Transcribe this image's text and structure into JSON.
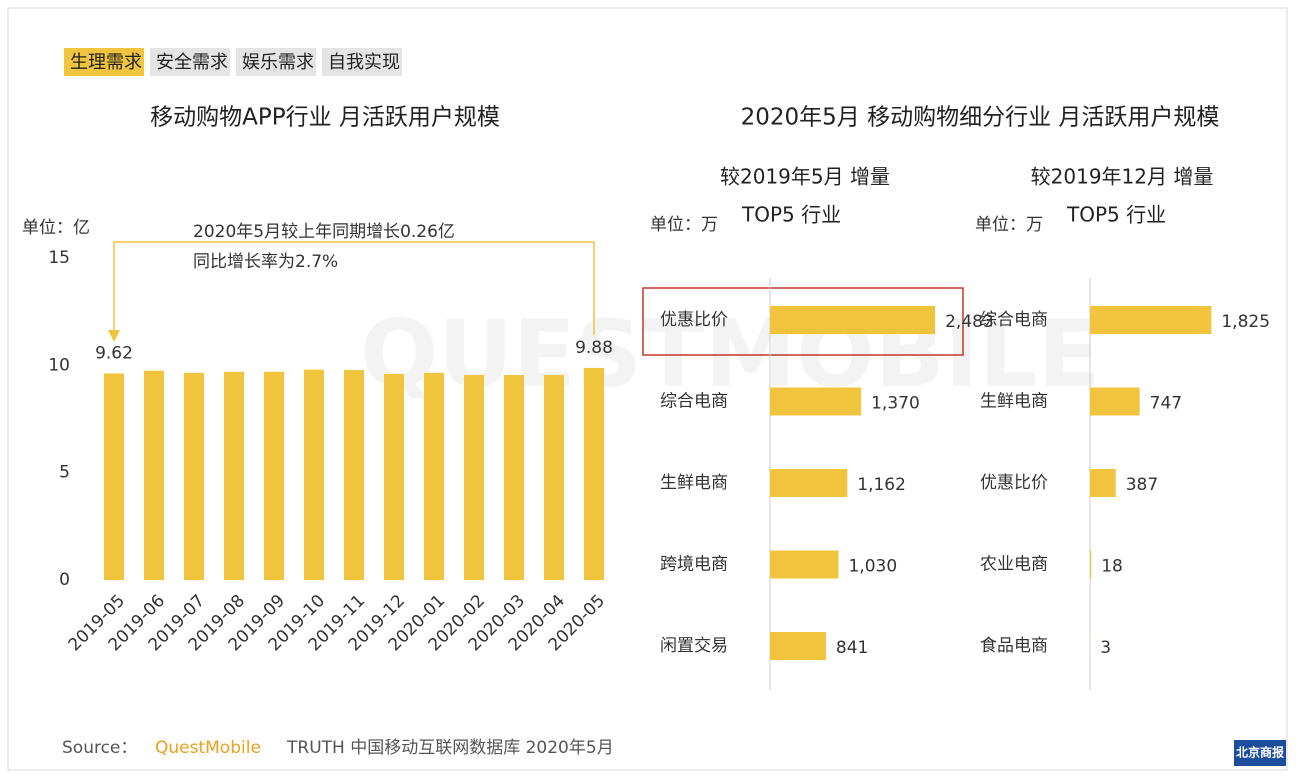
{
  "tabs": [
    "生理需求",
    "安全需求",
    "娱乐需求",
    "自我实现"
  ],
  "active_tab": 0,
  "heading": "2020年5月 移动购物细分行业 月活跃用户规模",
  "watermark": "QUESTMOBILE",
  "chart_data": [
    {
      "type": "bar",
      "title": "移动购物APP行业 月活跃用户规模",
      "unit": "单位：亿",
      "annotations": [
        "2020年5月较上年同期增长0.26亿",
        "同比增长率为2.7%"
      ],
      "categories": [
        "2019-05",
        "2019-06",
        "2019-07",
        "2019-08",
        "2019-09",
        "2019-10",
        "2019-11",
        "2019-12",
        "2020-01",
        "2020-02",
        "2020-03",
        "2020-04",
        "2020-05"
      ],
      "values": [
        9.62,
        9.75,
        9.65,
        9.7,
        9.7,
        9.8,
        9.78,
        9.6,
        9.65,
        9.55,
        9.55,
        9.55,
        9.88
      ],
      "value_labels": [
        "9.62",
        null,
        null,
        null,
        null,
        null,
        null,
        null,
        null,
        null,
        null,
        null,
        "9.88"
      ],
      "color": "#f0c43c",
      "ylim": [
        0,
        15
      ],
      "yticks": [
        0,
        5,
        10,
        15
      ]
    },
    {
      "type": "hbar",
      "subtitle": "较2019年5月 增量",
      "unit": "单位：万",
      "label": "TOP5 行业",
      "categories": [
        "优惠比价",
        "综合电商",
        "生鲜电商",
        "跨境电商",
        "闲置交易"
      ],
      "values": [
        2483,
        1370,
        1162,
        1030,
        841
      ],
      "value_labels": [
        "2,483",
        "1,370",
        "1,162",
        "1,030",
        "841"
      ],
      "color": "#f0c43c"
    },
    {
      "type": "hbar",
      "subtitle": "较2019年12月 增量",
      "unit": "单位：万",
      "label": "TOP5 行业",
      "categories": [
        "综合电商",
        "生鲜电商",
        "优惠比价",
        "农业电商",
        "食品电商"
      ],
      "values": [
        1825,
        747,
        387,
        18,
        3
      ],
      "value_labels": [
        "1,825",
        "747",
        "387",
        "18",
        "3"
      ],
      "color": "#f0c43c"
    }
  ],
  "source": {
    "label": "Source：",
    "brand": "QuestMobile",
    "text": "TRUTH 中国移动互联网数据库 2020年5月"
  },
  "logo": "北京商报"
}
